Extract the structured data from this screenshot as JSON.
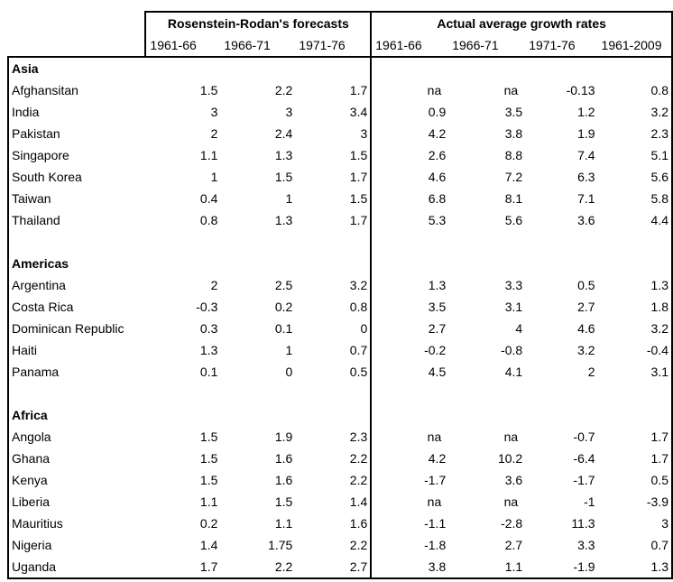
{
  "header": {
    "group_forecasts": "Rosenstein-Rodan's forecasts",
    "group_actual": "Actual average growth rates",
    "forecast_periods": [
      "1961-66",
      "1966-71",
      "1971-76"
    ],
    "actual_periods": [
      "1961-66",
      "1966-71",
      "1971-76",
      "1961-2009"
    ]
  },
  "regions": [
    {
      "name": "Asia",
      "rows": [
        {
          "country": "Afghansitan",
          "forecast": [
            "1.5",
            "2.2",
            "1.7"
          ],
          "actual": [
            "na",
            "na",
            "-0.13",
            "0.8"
          ]
        },
        {
          "country": "India",
          "forecast": [
            "3",
            "3",
            "3.4"
          ],
          "actual": [
            "0.9",
            "3.5",
            "1.2",
            "3.2"
          ]
        },
        {
          "country": "Pakistan",
          "forecast": [
            "2",
            "2.4",
            "3"
          ],
          "actual": [
            "4.2",
            "3.8",
            "1.9",
            "2.3"
          ]
        },
        {
          "country": "Singapore",
          "forecast": [
            "1.1",
            "1.3",
            "1.5"
          ],
          "actual": [
            "2.6",
            "8.8",
            "7.4",
            "5.1"
          ]
        },
        {
          "country": "South Korea",
          "forecast": [
            "1",
            "1.5",
            "1.7"
          ],
          "actual": [
            "4.6",
            "7.2",
            "6.3",
            "5.6"
          ]
        },
        {
          "country": "Taiwan",
          "forecast": [
            "0.4",
            "1",
            "1.5"
          ],
          "actual": [
            "6.8",
            "8.1",
            "7.1",
            "5.8"
          ]
        },
        {
          "country": "Thailand",
          "forecast": [
            "0.8",
            "1.3",
            "1.7"
          ],
          "actual": [
            "5.3",
            "5.6",
            "3.6",
            "4.4"
          ]
        }
      ]
    },
    {
      "name": "Americas",
      "rows": [
        {
          "country": "Argentina",
          "forecast": [
            "2",
            "2.5",
            "3.2"
          ],
          "actual": [
            "1.3",
            "3.3",
            "0.5",
            "1.3"
          ]
        },
        {
          "country": "Costa Rica",
          "forecast": [
            "-0.3",
            "0.2",
            "0.8"
          ],
          "actual": [
            "3.5",
            "3.1",
            "2.7",
            "1.8"
          ]
        },
        {
          "country": "Dominican Republic",
          "forecast": [
            "0.3",
            "0.1",
            "0"
          ],
          "actual": [
            "2.7",
            "4",
            "4.6",
            "3.2"
          ]
        },
        {
          "country": "Haiti",
          "forecast": [
            "1.3",
            "1",
            "0.7"
          ],
          "actual": [
            "-0.2",
            "-0.8",
            "3.2",
            "-0.4"
          ]
        },
        {
          "country": "Panama",
          "forecast": [
            "0.1",
            "0",
            "0.5"
          ],
          "actual": [
            "4.5",
            "4.1",
            "2",
            "3.1"
          ]
        }
      ]
    },
    {
      "name": "Africa",
      "rows": [
        {
          "country": "Angola",
          "forecast": [
            "1.5",
            "1.9",
            "2.3"
          ],
          "actual": [
            "na",
            "na",
            "-0.7",
            "1.7"
          ]
        },
        {
          "country": "Ghana",
          "forecast": [
            "1.5",
            "1.6",
            "2.2"
          ],
          "actual": [
            "4.2",
            "10.2",
            "-6.4",
            "1.7"
          ]
        },
        {
          "country": "Kenya",
          "forecast": [
            "1.5",
            "1.6",
            "2.2"
          ],
          "actual": [
            "-1.7",
            "3.6",
            "-1.7",
            "0.5"
          ]
        },
        {
          "country": "Liberia",
          "forecast": [
            "1.1",
            "1.5",
            "1.4"
          ],
          "actual": [
            "na",
            "na",
            "-1",
            "-3.9"
          ]
        },
        {
          "country": "Mauritius",
          "forecast": [
            "0.2",
            "1.1",
            "1.6"
          ],
          "actual": [
            "-1.1",
            "-2.8",
            "11.3",
            "3"
          ]
        },
        {
          "country": "Nigeria",
          "forecast": [
            "1.4",
            "1.75",
            "2.2"
          ],
          "actual": [
            "-1.8",
            "2.7",
            "3.3",
            "0.7"
          ]
        },
        {
          "country": "Uganda",
          "forecast": [
            "1.7",
            "2.2",
            "2.7"
          ],
          "actual": [
            "3.8",
            "1.1",
            "-1.9",
            "1.3"
          ]
        }
      ]
    }
  ]
}
